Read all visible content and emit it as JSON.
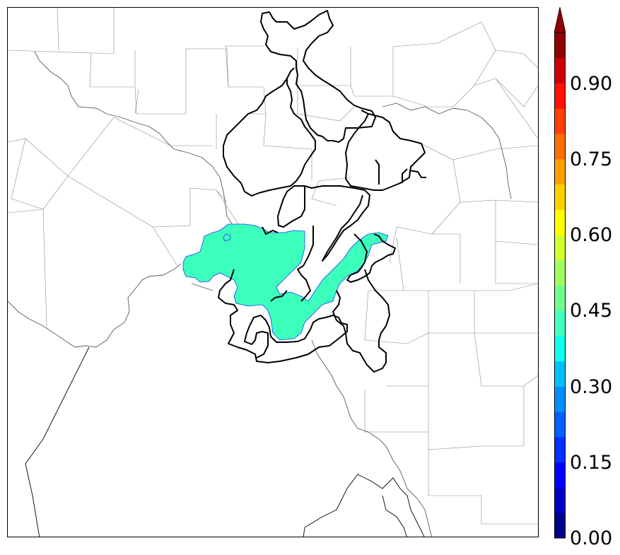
{
  "colorbar": {
    "ticks": [
      {
        "value": 0.0,
        "label": "0.00"
      },
      {
        "value": 0.15,
        "label": "0.15"
      },
      {
        "value": 0.3,
        "label": "0.30"
      },
      {
        "value": 0.45,
        "label": "0.45"
      },
      {
        "value": 0.6,
        "label": "0.60"
      },
      {
        "value": 0.75,
        "label": "0.75"
      },
      {
        "value": 0.9,
        "label": "0.90"
      }
    ],
    "min": 0.0,
    "max": 1.0,
    "extend": "max",
    "colors": [
      "#00008f",
      "#0000c8",
      "#0000ff",
      "#0030ff",
      "#0060ff",
      "#0090ff",
      "#00c0ff",
      "#10ffef",
      "#40ffbf",
      "#70ff8f",
      "#a0ff60",
      "#d0ff30",
      "#ffff00",
      "#ffd000",
      "#ffa000",
      "#ff7000",
      "#ff4000",
      "#ff1000",
      "#d00000",
      "#8f0000"
    ]
  },
  "field": {
    "value": 0.42,
    "color": "#3cffbc"
  }
}
